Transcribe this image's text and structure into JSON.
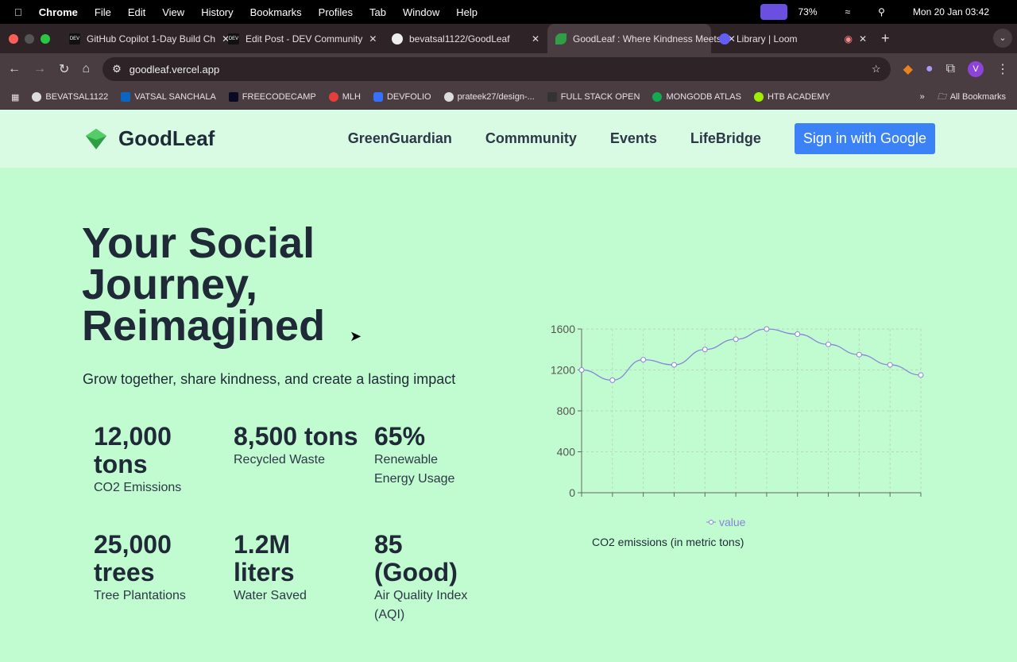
{
  "menubar": {
    "app": "Chrome",
    "items": [
      "File",
      "Edit",
      "View",
      "History",
      "Bookmarks",
      "Profiles",
      "Tab",
      "Window",
      "Help"
    ],
    "battery": "73%",
    "datetime": "Mon 20 Jan  03:42"
  },
  "tabs": [
    {
      "title": "GitHub Copilot 1-Day Build Ch",
      "fav": "DEV"
    },
    {
      "title": "Edit Post - DEV Community",
      "fav": "DEV"
    },
    {
      "title": "bevatsal1122/GoodLeaf",
      "fav": "gh"
    },
    {
      "title": "GoodLeaf : Where Kindness Meets",
      "fav": "leaf",
      "active": true
    },
    {
      "title": "Library | Loom",
      "fav": "loom"
    }
  ],
  "url": "goodleaf.vercel.app",
  "bookmarks": [
    "BEVATSAL1122",
    "VATSAL SANCHALA",
    "FREECODECAMP",
    "MLH",
    "DEVFOLIO",
    "prateek27/design-...",
    "FULL STACK OPEN",
    "MONGODB ATLAS",
    "HTB ACADEMY"
  ],
  "all_bookmarks": "All Bookmarks",
  "site": {
    "brand": "GoodLeaf",
    "nav": [
      "GreenGuardian",
      "Commmunity",
      "Events",
      "LifeBridge"
    ],
    "signin": "Sign in with Google",
    "headline": "Your Social Journey, Reimagined",
    "subtitle": "Grow together, share kindness, and create a lasting impact",
    "stats": [
      {
        "value": "12,000 tons",
        "label": "CO2 Emissions"
      },
      {
        "value": "8,500 tons",
        "label": "Recycled Waste"
      },
      {
        "value": "65%",
        "label": "Renewable Energy Usage"
      },
      {
        "value": "25,000 trees",
        "label": "Tree Plantations"
      },
      {
        "value": "1.2M liters",
        "label": "Water Saved"
      },
      {
        "value": "85 (Good)",
        "label": "Air Quality Index (AQI)"
      }
    ]
  },
  "chart_data": {
    "type": "line",
    "title": "CO2 emissions (in metric tons)",
    "legend": "value",
    "legend_position": "bottom-center",
    "ylim": [
      0,
      1600
    ],
    "yticks": [
      "0",
      "400",
      "800",
      "1200",
      "1600"
    ],
    "values": [
      1200,
      1100,
      1300,
      1250,
      1400,
      1500,
      1600,
      1550,
      1450,
      1350,
      1250,
      1150
    ],
    "grid": true,
    "color": "#8884d8"
  }
}
